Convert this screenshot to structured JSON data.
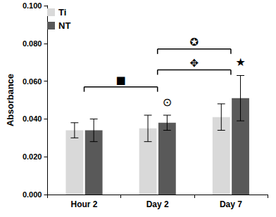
{
  "chart_data": {
    "type": "bar",
    "categories": [
      "Hour 2",
      "Day 2",
      "Day 7"
    ],
    "series": [
      {
        "name": "Ti",
        "color": "#d9d9d9",
        "values": [
          0.034,
          0.035,
          0.041
        ],
        "errors": [
          0.004,
          0.007,
          0.007
        ]
      },
      {
        "name": "NT",
        "color": "#595959",
        "values": [
          0.034,
          0.038,
          0.051
        ],
        "errors": [
          0.006,
          0.004,
          0.012
        ]
      }
    ],
    "ylabel": "Absorbance",
    "ylim": [
      0,
      0.1
    ],
    "yticks": [
      {
        "value": 0,
        "label": "0.000"
      },
      {
        "value": 0.02,
        "label": "0.020"
      },
      {
        "value": 0.04,
        "label": "0.040"
      },
      {
        "value": 0.06,
        "label": "0.060"
      },
      {
        "value": 0.08,
        "label": "0.080"
      },
      {
        "value": 0.1,
        "label": "0.100"
      }
    ],
    "grid": false,
    "legend": "upper left",
    "annotations": [
      {
        "text": "■",
        "from": "Hour 2",
        "to": "Day 2",
        "y": 0.057
      },
      {
        "text": "✥",
        "from": "Day 2",
        "to": "Day 7",
        "y": 0.066
      },
      {
        "text": "✪",
        "from": "Day 2",
        "to": "Day 7",
        "y": 0.077
      },
      {
        "text": "⊙",
        "category": "Day 2",
        "series": "NT",
        "y": 0.046
      },
      {
        "text": "★",
        "category": "Day 7",
        "series": "NT",
        "y": 0.067
      }
    ]
  }
}
